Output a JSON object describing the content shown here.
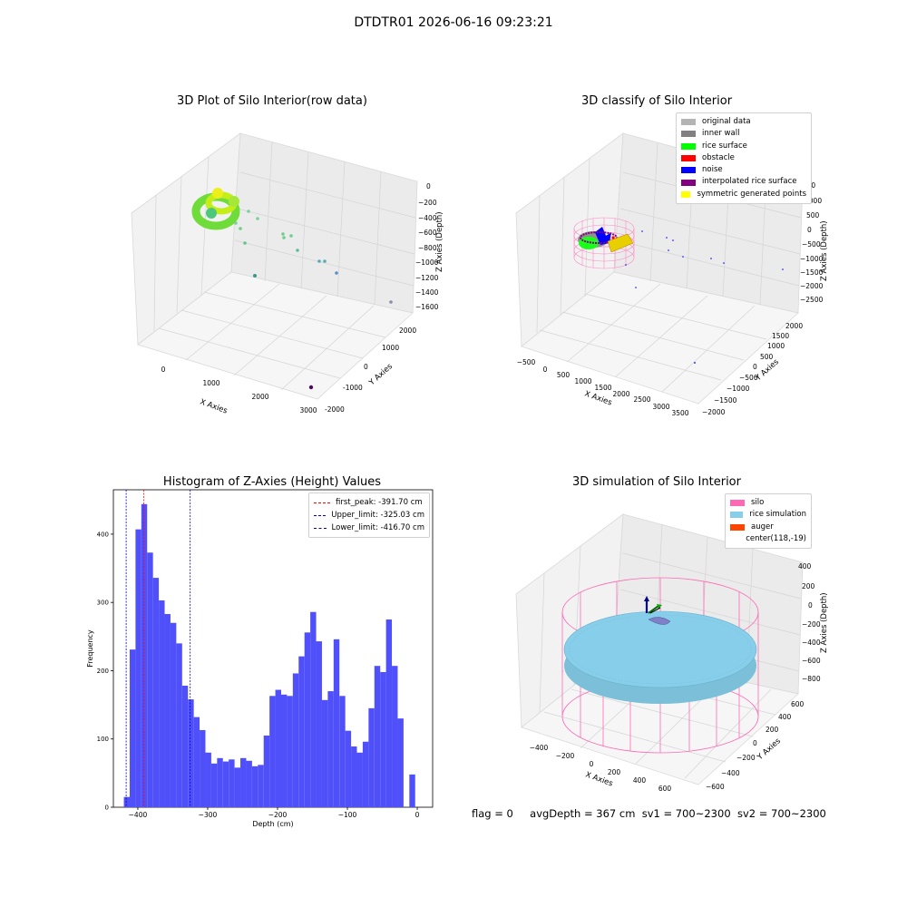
{
  "suptitle": "DTDTR01 2026-06-16 09:23:21",
  "footer": {
    "flag": "flag = 0",
    "avg_depth": "avgDepth = 367 cm",
    "sv1": "sv1 = 700~2300",
    "sv2": "sv2 = 700~2300"
  },
  "colors": {
    "hist_bar": "#5050fa",
    "first_peak": "#ff0000",
    "limit": "#0000cd",
    "original": "#b4b4b4",
    "inner_wall": "#808080",
    "rice_surface": "#00ff00",
    "obstacle": "#ff0000",
    "noise": "#0000ff",
    "interp": "#800080",
    "symmetric": "#ffff00",
    "silo": "#ff69b4",
    "rice_sim": "#87ceeb",
    "auger": "#ff4500"
  },
  "chart_data": [
    {
      "type": "scatter",
      "title": "3D Plot of Silo Interior(row data)",
      "xlabel": "X Axies",
      "ylabel": "Y Axies",
      "zlabel": "Z Axies (Depth)",
      "xticks": [
        "0",
        "1000",
        "2000",
        "3000"
      ],
      "yticks": [
        "-2000",
        "-1000",
        "0",
        "1000",
        "2000"
      ],
      "zticks": [
        "0",
        "−200",
        "−400",
        "−600",
        "−800",
        "−1000",
        "−1200",
        "−1400",
        "−1600"
      ],
      "points_sparse": [
        {
          "x": 3500,
          "y": 2100,
          "z": -1500
        },
        {
          "x": 2400,
          "y": 1200,
          "z": -1100
        },
        {
          "x": 2200,
          "y": 1100,
          "z": -1000
        },
        {
          "x": 2100,
          "y": 1000,
          "z": -900
        },
        {
          "x": 1300,
          "y": 700,
          "z": -800
        },
        {
          "x": 1200,
          "y": 700,
          "z": -700
        },
        {
          "x": 900,
          "y": 500,
          "z": -500
        },
        {
          "x": 800,
          "y": 400,
          "z": -400
        },
        {
          "x": 600,
          "y": 400,
          "z": -600
        },
        {
          "x": 1500,
          "y": -1000,
          "z": -1600
        }
      ]
    },
    {
      "type": "scatter",
      "title": "3D classify of Silo Interior",
      "xlabel": "X Axies",
      "ylabel": "Y Axies",
      "zlabel": "Z Axies (Depth)",
      "xticks": [
        "−500",
        "0",
        "500",
        "1000",
        "1500",
        "2000",
        "2500",
        "3000",
        "3500"
      ],
      "yticks": [
        "−2000",
        "−1500",
        "−1000",
        "−500",
        "0",
        "500",
        "1000",
        "1500",
        "2000"
      ],
      "zticks": [
        "1500",
        "1000",
        "500",
        "0",
        "−500",
        "−1000",
        "−1500",
        "−2000",
        "−2500"
      ],
      "legend": [
        "original data",
        "inner wall",
        "rice surface",
        "obstacle",
        "noise",
        "interpolated rice surface",
        "symmetric generated points"
      ]
    },
    {
      "type": "bar",
      "title": "Histogram of Z-Axies (Height) Values",
      "xlabel": "Depth (cm)",
      "ylabel": "Frequency",
      "xlim": [
        -435,
        22
      ],
      "ylim": [
        0,
        465
      ],
      "xticks": [
        -400,
        -300,
        -200,
        -100,
        0
      ],
      "yticks": [
        0,
        100,
        200,
        300,
        400
      ],
      "bin_start": -420,
      "bin_width": 8.34,
      "values": [
        15,
        231,
        407,
        444,
        373,
        336,
        303,
        283,
        270,
        240,
        178,
        158,
        132,
        113,
        80,
        64,
        72,
        67,
        70,
        58,
        72,
        68,
        60,
        62,
        105,
        163,
        172,
        165,
        163,
        196,
        221,
        256,
        286,
        243,
        157,
        170,
        246,
        163,
        112,
        89,
        80,
        96,
        145,
        207,
        198,
        275,
        207,
        130,
        0,
        48
      ],
      "vlines": [
        {
          "label": "first_peak: -391.70 cm",
          "x": -391.7,
          "color": "#ff0000"
        },
        {
          "label": "Upper_limit: -325.03 cm",
          "x": -325.03,
          "color": "#0000cd"
        },
        {
          "label": "Lower_limit: -416.70 cm",
          "x": -416.7,
          "color": "#0000cd"
        }
      ]
    },
    {
      "type": "scatter",
      "title": "3D simulation of Silo Interior",
      "xlabel": "X Axies",
      "ylabel": "Y Axies",
      "zlabel": "Z Axies (Depth)",
      "xticks": [
        "−400",
        "−200",
        "0",
        "200",
        "400",
        "600"
      ],
      "yticks": [
        "−600",
        "−400",
        "−200",
        "0",
        "200",
        "400",
        "600"
      ],
      "zticks": [
        "400",
        "200",
        "0",
        "−200",
        "−400",
        "−600",
        "−800"
      ],
      "legend": [
        "silo",
        "rice simulation",
        "auger",
        "center(118,-19)"
      ]
    }
  ]
}
